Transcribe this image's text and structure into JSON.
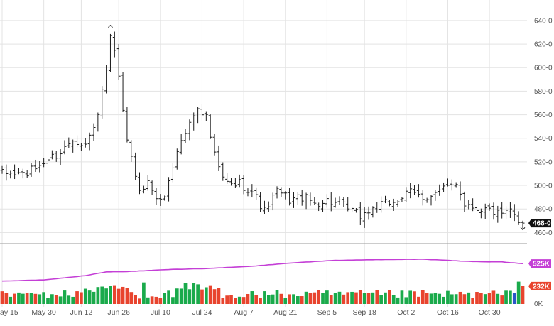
{
  "colors": {
    "grid": "#e3e3e3",
    "price_bar": "#1a1a1a",
    "volume_up": "#1aaa4b",
    "volume_down": "#e8442e",
    "volume_flat": "#2a55c8",
    "open_interest": "#c43fd6",
    "divider": "#9a9a9a",
    "axis_text": "#555555",
    "last_price_badge_bg": "#111111",
    "last_price_badge_text": "#ffffff",
    "oi_badge_bg": "#c43fd6",
    "volume_badge_bg": "#e8442e"
  },
  "chart_data": {
    "type": "ohlc",
    "price_axis": {
      "ticks": [
        "460-0",
        "480-0",
        "500-0",
        "520-0",
        "540-0",
        "560-0",
        "580-0",
        "600-0",
        "620-0",
        "640-0"
      ],
      "tick_values": [
        460,
        480,
        500,
        520,
        540,
        560,
        580,
        600,
        620,
        640
      ],
      "ylim": [
        456,
        649
      ],
      "last_price_label": "468-0",
      "last_price": 468
    },
    "date_axis": {
      "labels": [
        "ay 15",
        "May 30",
        "Jun 12",
        "Jun 26",
        "Jul 10",
        "Jul 24",
        "Aug 7",
        "Aug 21",
        "Sep 5",
        "Sep 18",
        "Oct 2",
        "Oct 16",
        "Oct 30"
      ],
      "label_bar_index": [
        0,
        10,
        19,
        28,
        38,
        48,
        58,
        68,
        78,
        87,
        97,
        107,
        117
      ],
      "bar_count": 126
    },
    "close_anchors": [
      [
        0,
        510
      ],
      [
        6,
        510
      ],
      [
        10,
        520
      ],
      [
        14,
        528
      ],
      [
        17,
        540
      ],
      [
        20,
        535
      ],
      [
        22,
        548
      ],
      [
        24,
        578
      ],
      [
        25,
        598
      ],
      [
        26,
        624
      ],
      [
        27,
        612
      ],
      [
        28,
        590
      ],
      [
        29,
        560
      ],
      [
        30,
        540
      ],
      [
        32,
        505
      ],
      [
        33,
        498
      ],
      [
        35,
        502
      ],
      [
        38,
        485
      ],
      [
        40,
        502
      ],
      [
        42,
        530
      ],
      [
        44,
        545
      ],
      [
        46,
        560
      ],
      [
        47,
        568
      ],
      [
        49,
        558
      ],
      [
        51,
        525
      ],
      [
        53,
        505
      ],
      [
        55,
        500
      ],
      [
        57,
        502
      ],
      [
        60,
        495
      ],
      [
        63,
        478
      ],
      [
        66,
        495
      ],
      [
        69,
        488
      ],
      [
        72,
        490
      ],
      [
        75,
        485
      ],
      [
        78,
        487
      ],
      [
        81,
        484
      ],
      [
        84,
        478
      ],
      [
        86,
        474
      ],
      [
        89,
        480
      ],
      [
        92,
        484
      ],
      [
        95,
        488
      ],
      [
        98,
        494
      ],
      [
        101,
        490
      ],
      [
        104,
        493
      ],
      [
        107,
        498
      ],
      [
        109,
        503
      ],
      [
        111,
        485
      ],
      [
        114,
        481
      ],
      [
        117,
        479
      ],
      [
        120,
        474
      ],
      [
        122,
        478
      ],
      [
        124,
        470
      ],
      [
        125,
        468
      ]
    ],
    "volume": {
      "axis_labels": [
        "0K",
        "232K",
        "525K"
      ],
      "zero_label": "0K",
      "current_volume_label": "232K",
      "current_volume": 232,
      "ylim_k": [
        0,
        720
      ]
    },
    "open_interest": {
      "current_label": "525K",
      "current": 525,
      "anchors_k": [
        [
          0,
          298
        ],
        [
          10,
          312
        ],
        [
          20,
          368
        ],
        [
          25,
          418
        ],
        [
          30,
          420
        ],
        [
          40,
          448
        ],
        [
          50,
          462
        ],
        [
          60,
          490
        ],
        [
          70,
          535
        ],
        [
          80,
          566
        ],
        [
          90,
          576
        ],
        [
          100,
          582
        ],
        [
          105,
          572
        ],
        [
          110,
          558
        ],
        [
          115,
          548
        ],
        [
          120,
          546
        ],
        [
          125,
          525
        ]
      ]
    }
  }
}
